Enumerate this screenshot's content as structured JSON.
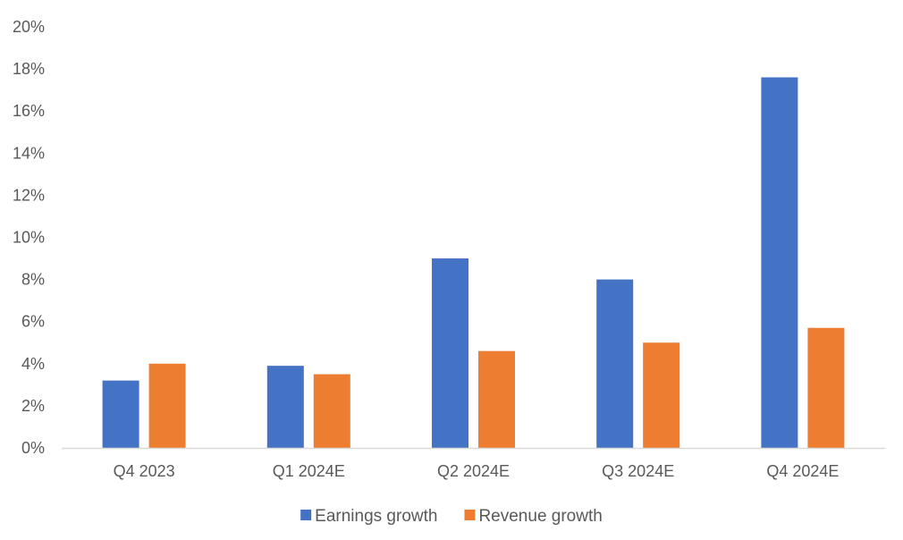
{
  "chart_data": {
    "type": "bar",
    "title": "",
    "xlabel": "",
    "ylabel": "",
    "categories": [
      "Q4 2023",
      "Q1 2024E",
      "Q2 2024E",
      "Q3 2024E",
      "Q4 2024E"
    ],
    "series": [
      {
        "name": "Earnings growth",
        "color": "#4472C4",
        "values": [
          3.2,
          3.9,
          9.0,
          8.0,
          17.6
        ]
      },
      {
        "name": "Revenue growth",
        "color": "#ED7D31",
        "values": [
          4.0,
          3.5,
          4.6,
          5.0,
          5.7
        ]
      }
    ],
    "ylim": [
      0,
      20
    ],
    "yticks": [
      0,
      2,
      4,
      6,
      8,
      10,
      12,
      14,
      16,
      18,
      20
    ],
    "ytick_labels": [
      "0%",
      "2%",
      "4%",
      "6%",
      "8%",
      "10%",
      "12%",
      "14%",
      "16%",
      "18%",
      "20%"
    ],
    "grid": false,
    "legend_position": "bottom-center",
    "axis_color": "#D9D9D9",
    "text_color": "#595959"
  }
}
